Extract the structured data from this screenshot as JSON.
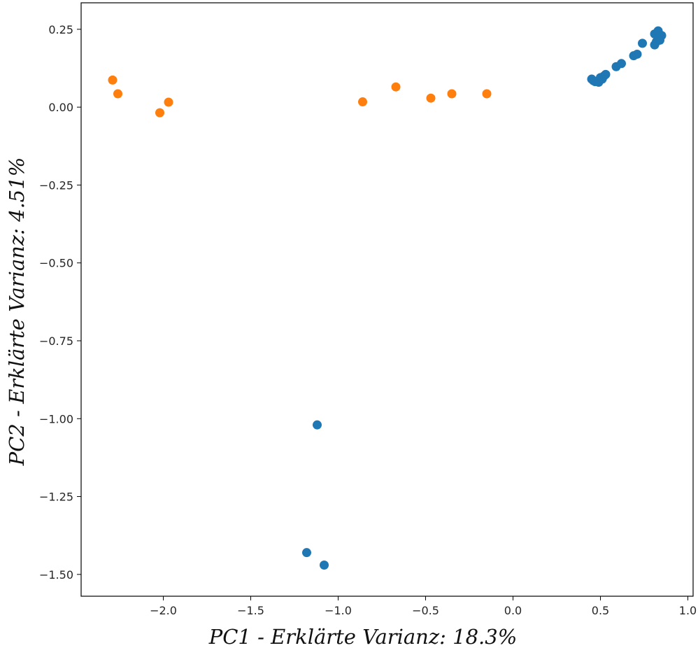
{
  "chart_data": {
    "type": "scatter",
    "title": "",
    "xlabel": "PC1 - Erklärte Varianz: 18.3%",
    "ylabel": "PC2 - Erklärte Varianz: 4.51%",
    "xlim": [
      -2.47,
      1.03
    ],
    "ylim": [
      -1.57,
      0.335
    ],
    "xticks": [
      -2.0,
      -1.5,
      -1.0,
      -0.5,
      0.0,
      0.5,
      1.0
    ],
    "xtick_labels": [
      "−2.0",
      "−1.5",
      "−1.0",
      "−0.5",
      "0.0",
      "0.5",
      "1.0"
    ],
    "yticks": [
      0.25,
      0.0,
      -0.25,
      -0.5,
      -0.75,
      -1.0,
      -1.25,
      -1.5
    ],
    "ytick_labels": [
      "0.25",
      "0.00",
      "−0.25",
      "−0.50",
      "−0.75",
      "−1.00",
      "−1.25",
      "−1.50"
    ],
    "grid": false,
    "legend": "none",
    "series": [
      {
        "color": "#1f77b4",
        "points": [
          [
            -1.12,
            -1.02
          ],
          [
            -1.18,
            -1.43
          ],
          [
            -1.08,
            -1.47
          ],
          [
            0.45,
            0.09
          ],
          [
            0.46,
            0.085
          ],
          [
            0.47,
            0.082
          ],
          [
            0.49,
            0.08
          ],
          [
            0.5,
            0.095
          ],
          [
            0.51,
            0.09
          ],
          [
            0.52,
            0.1
          ],
          [
            0.53,
            0.105
          ],
          [
            0.59,
            0.13
          ],
          [
            0.62,
            0.14
          ],
          [
            0.69,
            0.165
          ],
          [
            0.71,
            0.17
          ],
          [
            0.74,
            0.205
          ],
          [
            0.81,
            0.2
          ],
          [
            0.82,
            0.21
          ],
          [
            0.81,
            0.235
          ],
          [
            0.83,
            0.245
          ],
          [
            0.84,
            0.225
          ],
          [
            0.85,
            0.23
          ],
          [
            0.84,
            0.215
          ]
        ]
      },
      {
        "color": "#ff7f0e",
        "points": [
          [
            -2.29,
            0.087
          ],
          [
            -2.26,
            0.043
          ],
          [
            -2.02,
            -0.018
          ],
          [
            -1.97,
            0.016
          ],
          [
            -0.86,
            0.017
          ],
          [
            -0.67,
            0.065
          ],
          [
            -0.47,
            0.029
          ],
          [
            -0.35,
            0.043
          ],
          [
            -0.15,
            0.043
          ]
        ]
      }
    ]
  }
}
